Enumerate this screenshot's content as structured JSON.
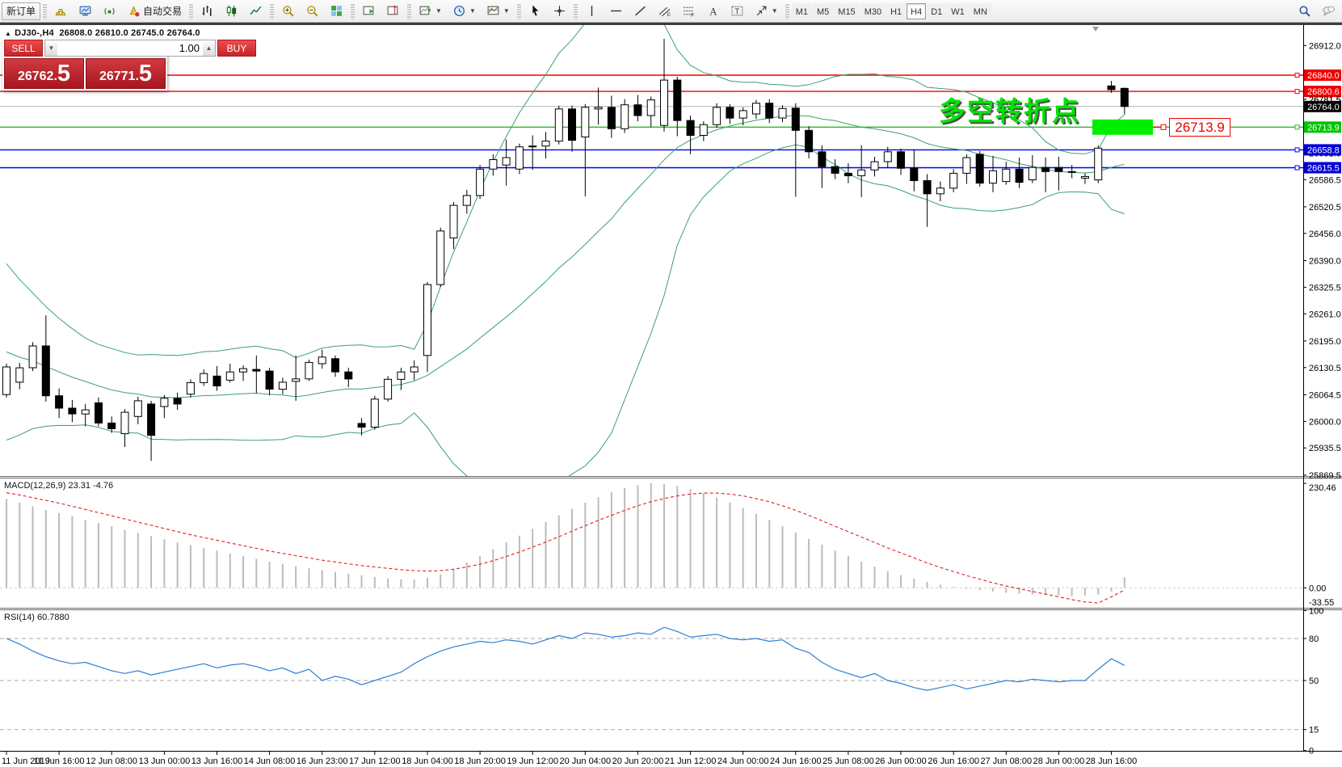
{
  "toolbar": {
    "new_order_label": "新订单",
    "auto_trading_label": "自动交易",
    "icons_left": [
      "gold-bars-icon",
      "terminal-icon",
      "signal-icon"
    ],
    "icon_groups": [
      [
        "bar-chart-icon",
        "candlestick-chart-icon",
        "line-chart-icon"
      ],
      [
        "zoom-in-icon",
        "zoom-out-icon",
        "tile-windows-icon"
      ],
      [
        "auto-scroll-icon",
        "chart-shift-icon"
      ],
      [
        "indicators-icon",
        "periods-icon",
        "templates-icon"
      ],
      [
        "cursor-icon",
        "crosshair-icon"
      ],
      [
        "vline-icon",
        "hline-icon",
        "trendline-icon",
        "channel-icon",
        "fibonacci-icon",
        "text-icon",
        "label-icon",
        "arrows-icon"
      ]
    ],
    "timeframes": [
      "M1",
      "M5",
      "M15",
      "M30",
      "H1",
      "H4",
      "D1",
      "W1",
      "MN"
    ],
    "active_timeframe": "H4",
    "right_icons": [
      "search-icon",
      "chat-icon"
    ]
  },
  "header": {
    "collapse_arrow": "▲",
    "symbol": "DJ30-,H4",
    "ohlc_text": "26808.0 26810.0 26745.0 26764.0"
  },
  "trade_panel": {
    "sell_label": "SELL",
    "buy_label": "BUY",
    "volume": "1.00",
    "bid_small": "26762",
    "bid_point": ".",
    "bid_big": "5",
    "ask_small": "26771",
    "ask_point": ".",
    "ask_big": "5"
  },
  "annotation_text": "多空转折点",
  "price_tag_label": "26713.9",
  "colors": {
    "bull": "#ffffff",
    "bear": "#000000",
    "outline": "#000000",
    "bollinger": "#3aa26b",
    "red_line": "#f40000",
    "blue_line": "#0000f4",
    "green_line": "#2eb82e",
    "current_line": "#b4b4b4",
    "badge_red": "#ef0000",
    "badge_black": "#000000",
    "badge_green": "#00c400",
    "badge_blue": "#0000d4",
    "hist": "#bcbcbc",
    "signal": "#e02020",
    "rsi": "#2a7fd4",
    "level_dash": "#aaaaaa",
    "object_rect": "#00ef00"
  },
  "chart_data": {
    "type": "candlestick",
    "symbol": "DJ30-",
    "timeframe": "H4",
    "current_bar": {
      "open": 26808.0,
      "high": 26810.0,
      "low": 26745.0,
      "close": 26764.0
    },
    "price_axis_ticks": [
      26912.0,
      26781.5,
      26651.0,
      26586.5,
      26520.5,
      26456.0,
      26390.0,
      26325.5,
      26261.0,
      26195.0,
      26130.5,
      26064.5,
      26000.0,
      25935.5,
      25869.5
    ],
    "price_badges": [
      {
        "label": "26840.0",
        "price": 26840.0,
        "type": "red"
      },
      {
        "label": "26800.6",
        "price": 26800.6,
        "type": "red"
      },
      {
        "label": "26781.5",
        "price": 26781.5,
        "type": "tick"
      },
      {
        "label": "26764.0",
        "price": 26764.0,
        "type": "black"
      },
      {
        "label": "26713.9",
        "price": 26713.9,
        "type": "green"
      },
      {
        "label": "26658.8",
        "price": 26658.8,
        "type": "blue"
      },
      {
        "label": "26615.5",
        "price": 26615.5,
        "type": "blue"
      }
    ],
    "object_hlines": [
      {
        "price": 26840.0,
        "color_key": "red_line"
      },
      {
        "price": 26800.6,
        "color_key": "red_line"
      },
      {
        "price": 26764.0,
        "color_key": "current_line"
      },
      {
        "price": 26713.9,
        "color_key": "green_line"
      },
      {
        "price": 26658.8,
        "color_key": "blue_line"
      },
      {
        "price": 26615.5,
        "color_key": "blue_line"
      }
    ],
    "time_labels": [
      "11 Jun 2019",
      "11 Jun 16:00",
      "12 Jun 08:00",
      "13 Jun 00:00",
      "13 Jun 16:00",
      "14 Jun 08:00",
      "16 Jun 23:00",
      "17 Jun 12:00",
      "18 Jun 04:00",
      "18 Jun 20:00",
      "19 Jun 12:00",
      "20 Jun 04:00",
      "20 Jun 20:00",
      "21 Jun 12:00",
      "24 Jun 00:00",
      "24 Jun 16:00",
      "25 Jun 08:00",
      "26 Jun 00:00",
      "26 Jun 16:00",
      "27 Jun 08:00",
      "28 Jun 00:00",
      "28 Jun 16:00"
    ],
    "candles": [
      [
        26065,
        26140,
        26058,
        26132
      ],
      [
        26095,
        26142,
        26078,
        26130
      ],
      [
        26130,
        26192,
        26122,
        26183
      ],
      [
        26183,
        26257,
        26048,
        26062
      ],
      [
        26062,
        26080,
        26008,
        26032
      ],
      [
        26032,
        26052,
        25998,
        26018
      ],
      [
        26018,
        26042,
        25988,
        26028
      ],
      [
        26045,
        26058,
        25988,
        25996
      ],
      [
        25996,
        26012,
        25972,
        25982
      ],
      [
        25970,
        26030,
        25938,
        26022
      ],
      [
        26012,
        26060,
        25993,
        26050
      ],
      [
        26042,
        26050,
        25904,
        25966
      ],
      [
        26036,
        26064,
        26008,
        26056
      ],
      [
        26056,
        26070,
        26028,
        26042
      ],
      [
        26066,
        26102,
        26058,
        26094
      ],
      [
        26094,
        26126,
        26086,
        26116
      ],
      [
        26110,
        26134,
        26074,
        26086
      ],
      [
        26100,
        26140,
        26094,
        26120
      ],
      [
        26120,
        26136,
        26098,
        26128
      ],
      [
        26126,
        26160,
        26068,
        26122
      ],
      [
        26122,
        26130,
        26063,
        26078
      ],
      [
        26078,
        26106,
        26066,
        26095
      ],
      [
        26097,
        26160,
        26050,
        26103
      ],
      [
        26103,
        26150,
        26098,
        26143
      ],
      [
        26140,
        26174,
        26128,
        26156
      ],
      [
        26152,
        26160,
        26108,
        26120
      ],
      [
        26120,
        26130,
        26083,
        26103
      ],
      [
        25995,
        26008,
        25966,
        25986
      ],
      [
        25986,
        26062,
        25980,
        26054
      ],
      [
        26054,
        26110,
        26048,
        26102
      ],
      [
        26102,
        26130,
        26076,
        26120
      ],
      [
        26120,
        26148,
        26100,
        26132
      ],
      [
        26160,
        26338,
        26120,
        26332
      ],
      [
        26332,
        26470,
        26326,
        26462
      ],
      [
        26445,
        26532,
        26418,
        26524
      ],
      [
        26524,
        26562,
        26504,
        26548
      ],
      [
        26548,
        26622,
        26540,
        26612
      ],
      [
        26612,
        26648,
        26596,
        26635
      ],
      [
        26622,
        26684,
        26572,
        26640
      ],
      [
        26612,
        26674,
        26600,
        26666
      ],
      [
        26666,
        26694,
        26610,
        26668
      ],
      [
        26668,
        26702,
        26638,
        26680
      ],
      [
        26680,
        26766,
        26672,
        26758
      ],
      [
        26758,
        26766,
        26654,
        26682
      ],
      [
        26690,
        26770,
        26546,
        26762
      ],
      [
        26758,
        26810,
        26720,
        26762
      ],
      [
        26762,
        26790,
        26688,
        26710
      ],
      [
        26710,
        26782,
        26700,
        26768
      ],
      [
        26768,
        26792,
        26728,
        26742
      ],
      [
        26742,
        26788,
        26714,
        26780
      ],
      [
        26718,
        26928,
        26703,
        26828
      ],
      [
        26828,
        26836,
        26692,
        26730
      ],
      [
        26730,
        26742,
        26648,
        26694
      ],
      [
        26694,
        26728,
        26680,
        26720
      ],
      [
        26720,
        26772,
        26712,
        26762
      ],
      [
        26762,
        26770,
        26722,
        26736
      ],
      [
        26736,
        26762,
        26718,
        26754
      ],
      [
        26746,
        26780,
        26734,
        26772
      ],
      [
        26772,
        26782,
        26724,
        26736
      ],
      [
        26736,
        26767,
        26726,
        26759
      ],
      [
        26760,
        26772,
        26545,
        26706
      ],
      [
        26706,
        26716,
        26638,
        26654
      ],
      [
        26654,
        26670,
        26566,
        26618
      ],
      [
        26618,
        26636,
        26588,
        26602
      ],
      [
        26602,
        26626,
        26578,
        26596
      ],
      [
        26596,
        26670,
        26544,
        26610
      ],
      [
        26610,
        26642,
        26594,
        26630
      ],
      [
        26630,
        26666,
        26614,
        26654
      ],
      [
        26654,
        26662,
        26598,
        26614
      ],
      [
        26614,
        26660,
        26558,
        26584
      ],
      [
        26584,
        26600,
        26472,
        26552
      ],
      [
        26552,
        26582,
        26534,
        26566
      ],
      [
        26566,
        26612,
        26556,
        26602
      ],
      [
        26602,
        26648,
        26576,
        26640
      ],
      [
        26648,
        26656,
        26570,
        26578
      ],
      [
        26578,
        26644,
        26556,
        26608
      ],
      [
        26582,
        26630,
        26574,
        26612
      ],
      [
        26612,
        26640,
        26566,
        26580
      ],
      [
        26586,
        26646,
        26578,
        26616
      ],
      [
        26616,
        26640,
        26556,
        26606
      ],
      [
        26616,
        26642,
        26560,
        26606
      ],
      [
        26606,
        26622,
        26590,
        26604
      ],
      [
        26590,
        26602,
        26576,
        26594
      ],
      [
        26586,
        26670,
        26578,
        26663
      ],
      [
        26814,
        26826,
        26797,
        26805
      ],
      [
        26808,
        26810,
        26745,
        26764
      ]
    ],
    "bollinger": {
      "period": 20,
      "deviation": 2,
      "seed_closes": [
        26420,
        26390,
        26360,
        26330,
        26300,
        26270,
        26240,
        26210,
        26180,
        26150,
        26120,
        26100,
        26080,
        26060,
        26050,
        26060,
        26070,
        26080,
        26090,
        26100
      ]
    },
    "macd": {
      "label": "MACD(12,26,9)",
      "values_text": "23.31 -4.76",
      "scale_max": "230.46",
      "scale_zero": "0.00",
      "scale_min": "-33.55",
      "hist": [
        196,
        188,
        180,
        172,
        165,
        158,
        150,
        143,
        136,
        128,
        121,
        114,
        107,
        100,
        94,
        88,
        82,
        76,
        70,
        64,
        58,
        53,
        48,
        43,
        39,
        35,
        31,
        28,
        24,
        21,
        19,
        18,
        22,
        30,
        42,
        56,
        70,
        85,
        100,
        115,
        130,
        145,
        160,
        174,
        188,
        200,
        211,
        220,
        227,
        230.46,
        229,
        225,
        218,
        209,
        199,
        188,
        176,
        163,
        150,
        136,
        122,
        108,
        95,
        82,
        70,
        58,
        47,
        37,
        28,
        20,
        13,
        7,
        2,
        -2,
        -5,
        -8,
        -11,
        -13,
        -15,
        -16,
        -17,
        -18,
        -17,
        -15,
        -8,
        23.31
      ],
      "signal": [
        210,
        205,
        199,
        193,
        187,
        180,
        173,
        166,
        159,
        152,
        145,
        138,
        131,
        124,
        117,
        111,
        105,
        99,
        93,
        87,
        81,
        76,
        71,
        66,
        61,
        57,
        53,
        49,
        46,
        43,
        40,
        38,
        37,
        38,
        41,
        46,
        52,
        60,
        69,
        79,
        90,
        101,
        113,
        125,
        137,
        149,
        160,
        171,
        181,
        190,
        197,
        203,
        207,
        209,
        209,
        207,
        203,
        197,
        190,
        181,
        171,
        160,
        148,
        136,
        124,
        112,
        100,
        88,
        77,
        66,
        55,
        45,
        36,
        27,
        19,
        11,
        4,
        -2,
        -8,
        -14,
        -20,
        -26,
        -31,
        -33.55,
        -20,
        -4.76
      ]
    },
    "rsi": {
      "label": "RSI(14)",
      "value_text": "60.7880",
      "levels": [
        80,
        50,
        15
      ],
      "scale_labels": [
        100,
        80,
        50,
        15,
        0
      ],
      "series": [
        80,
        76,
        71,
        67,
        64,
        62,
        63,
        60,
        57,
        55,
        57,
        54,
        56,
        58,
        60,
        62,
        59,
        61,
        62,
        60,
        57,
        59,
        55,
        58,
        50,
        53,
        51,
        47,
        50,
        53,
        56,
        62,
        67,
        71,
        74,
        76,
        78,
        77,
        79,
        78,
        76,
        79,
        82,
        80,
        84,
        83,
        81,
        82,
        84,
        83,
        88,
        85,
        81,
        82,
        83,
        80,
        79,
        80,
        78,
        79,
        73,
        70,
        63,
        58,
        55,
        52,
        55,
        50,
        48,
        45,
        43,
        45,
        47,
        44,
        46,
        48,
        50,
        49,
        51,
        50,
        49,
        50,
        50,
        58,
        65.6,
        60.79
      ]
    }
  }
}
